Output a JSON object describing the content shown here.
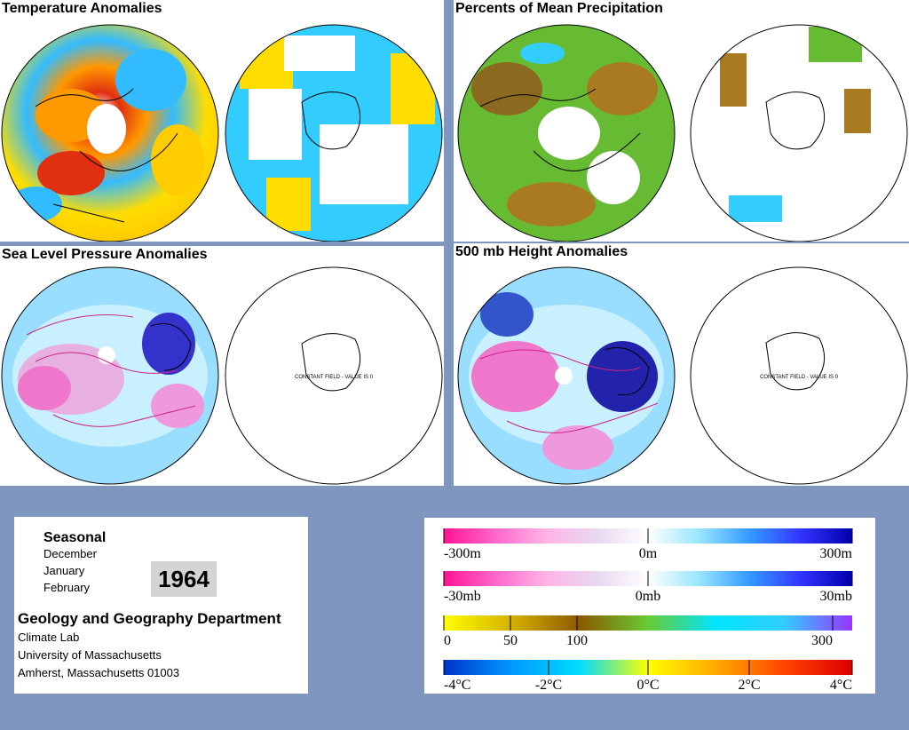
{
  "panels": {
    "temperature": {
      "title": "Temperature Anomalies"
    },
    "precipitation": {
      "title": "Percents of Mean Precipitation"
    },
    "slp": {
      "title": "Sea Level Pressure Anomalies"
    },
    "height500": {
      "title": "500 mb Height Anomalies"
    }
  },
  "constant_field_label": "CONSTANT FIELD - VALUE IS 0",
  "info": {
    "season": "Seasonal",
    "months": [
      "December",
      "January",
      "February"
    ],
    "year": "1964",
    "department": "Geology and Geography Department",
    "lab": "Climate Lab",
    "university": "University of Massachusetts",
    "address": "Amherst, Massachusetts 01003"
  },
  "legends": [
    {
      "name": "height",
      "labels": [
        "-300m",
        "0m",
        "300m"
      ],
      "colors": [
        "#ff1493",
        "#ff66cc",
        "#ffb3e6",
        "#e8d8f0",
        "#ffffff",
        "#99e6ff",
        "#3399ff",
        "#3333ff",
        "#0000aa"
      ]
    },
    {
      "name": "pressure",
      "labels": [
        "-30mb",
        "0mb",
        "30mb"
      ],
      "colors": [
        "#ff1493",
        "#ff66cc",
        "#ffb3e6",
        "#e8d8f0",
        "#ffffff",
        "#99e6ff",
        "#3399ff",
        "#3333ff",
        "#0000aa"
      ]
    },
    {
      "name": "precip",
      "labels": [
        "0",
        "50",
        "100",
        "300"
      ],
      "colors": [
        "#ffff00",
        "#d4b000",
        "#8b5a00",
        "#66cc33",
        "#00e5ff",
        "#33ccff",
        "#9933ff"
      ]
    },
    {
      "name": "temp",
      "labels": [
        "-4°C",
        "-2°C",
        "0°C",
        "2°C",
        "4°C"
      ],
      "colors": [
        "#0033cc",
        "#0099ff",
        "#00ddff",
        "#ffff00",
        "#ffaa00",
        "#ff4400",
        "#dd0000"
      ]
    }
  ]
}
